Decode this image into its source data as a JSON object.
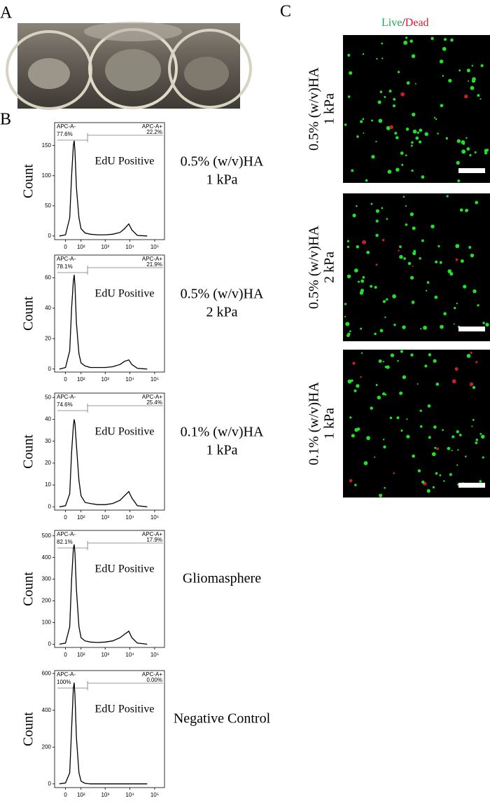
{
  "panels": {
    "a": "A",
    "b": "B",
    "c": "C"
  },
  "live_dead": {
    "live": "Live",
    "sep": "/",
    "dead": "Dead"
  },
  "images": [
    {
      "lines": [
        "0.5% (w/v)HA",
        "1 kPa"
      ]
    },
    {
      "lines": [
        "0.5% (w/v)HA",
        "2 kPa"
      ]
    },
    {
      "lines": [
        "0.1% (w/v)HA",
        "1 kPa"
      ]
    }
  ],
  "chart_data": [
    {
      "type": "line",
      "xscale": "biexponential",
      "ylabel": "Count",
      "annotation": "EdU Positive",
      "condition": [
        "0.5% (w/v)HA",
        "1 kPa"
      ],
      "gate": {
        "neg_label": "APC-A-",
        "neg_pct": "77.6%",
        "pos_label": "APC-A+",
        "pos_pct": "22.2%"
      },
      "x": [
        -30,
        0,
        20,
        30,
        40,
        45,
        50,
        60,
        80,
        100,
        150,
        250,
        500,
        1000,
        2000,
        4000,
        6000,
        9000,
        12000,
        20000,
        50000
      ],
      "values": [
        0,
        2,
        30,
        100,
        150,
        158,
        140,
        80,
        30,
        12,
        5,
        3,
        2,
        2,
        3,
        6,
        12,
        20,
        10,
        1,
        0
      ],
      "color": "#000000",
      "xlim": [
        -60,
        250000
      ],
      "ylim": [
        -6,
        188
      ],
      "yticks": [
        0,
        50,
        100,
        150
      ],
      "xticks": [
        0,
        {
          "value": 100,
          "label": "10²"
        },
        {
          "value": 1000,
          "label": "10³"
        },
        {
          "value": 10000,
          "label": "10⁴"
        },
        {
          "value": 100000,
          "label": "10⁵"
        }
      ]
    },
    {
      "type": "line",
      "xscale": "biexponential",
      "ylabel": "Count",
      "annotation": "EdU Positive",
      "condition": [
        "0.5% (w/v)HA",
        "2 kPa"
      ],
      "gate": {
        "neg_label": "APC-A-",
        "neg_pct": "78.1%",
        "pos_label": "APC-A+",
        "pos_pct": "21.9%"
      },
      "x": [
        -30,
        0,
        20,
        30,
        40,
        45,
        50,
        60,
        80,
        100,
        150,
        250,
        500,
        1000,
        2000,
        4000,
        6000,
        9000,
        12000,
        20000,
        50000
      ],
      "values": [
        0,
        1,
        12,
        40,
        58,
        62,
        55,
        30,
        10,
        4,
        2,
        1,
        1,
        1,
        1.5,
        3,
        5,
        6,
        3,
        0.5,
        0
      ],
      "color": "#000000",
      "xlim": [
        -60,
        250000
      ],
      "ylim": [
        -2,
        75
      ],
      "yticks": [
        0,
        20,
        40,
        60
      ],
      "xticks": [
        0,
        {
          "value": 100,
          "label": "10²"
        },
        {
          "value": 1000,
          "label": "10³"
        },
        {
          "value": 10000,
          "label": "10⁴"
        },
        {
          "value": 100000,
          "label": "10⁵"
        }
      ]
    },
    {
      "type": "line",
      "xscale": "biexponential",
      "ylabel": "Count",
      "annotation": "EdU Positive",
      "condition": [
        "0.1% (w/v)HA",
        "1 kPa"
      ],
      "gate": {
        "neg_label": "APC-A-",
        "neg_pct": "74.6%",
        "pos_label": "APC-A+",
        "pos_pct": "25.4%"
      },
      "x": [
        -30,
        0,
        20,
        30,
        40,
        45,
        50,
        60,
        80,
        100,
        150,
        250,
        500,
        1000,
        2000,
        4000,
        6000,
        9000,
        12000,
        20000,
        50000
      ],
      "values": [
        0,
        0.5,
        6,
        25,
        37,
        40,
        38,
        28,
        12,
        5,
        2,
        1.5,
        1,
        1,
        1.5,
        3,
        5,
        7,
        4,
        0.5,
        0
      ],
      "color": "#000000",
      "xlim": [
        -60,
        250000
      ],
      "ylim": [
        -1.5,
        52
      ],
      "yticks": [
        0,
        10,
        20,
        30,
        40,
        50
      ],
      "xticks": [
        0,
        {
          "value": 100,
          "label": "10²"
        },
        {
          "value": 1000,
          "label": "10³"
        },
        {
          "value": 10000,
          "label": "10⁴"
        },
        {
          "value": 100000,
          "label": "10⁵"
        }
      ]
    },
    {
      "type": "line",
      "xscale": "biexponential",
      "ylabel": "Count",
      "annotation": "EdU Positive",
      "condition": [
        "Gliomasphere"
      ],
      "gate": {
        "neg_label": "APC-A-",
        "neg_pct": "82.1%",
        "pos_label": "APC-A+",
        "pos_pct": "17.9%"
      },
      "x": [
        -30,
        0,
        20,
        30,
        40,
        45,
        50,
        60,
        80,
        100,
        150,
        250,
        500,
        1000,
        2000,
        4000,
        6000,
        9000,
        12000,
        20000,
        50000
      ],
      "values": [
        0,
        5,
        80,
        300,
        440,
        460,
        420,
        250,
        80,
        30,
        15,
        10,
        8,
        10,
        15,
        30,
        45,
        60,
        30,
        5,
        0
      ],
      "color": "#000000",
      "xlim": [
        -60,
        250000
      ],
      "ylim": [
        -15,
        525
      ],
      "yticks": [
        0,
        100,
        200,
        300,
        400,
        500
      ],
      "xticks": [
        0,
        {
          "value": 100,
          "label": "10²"
        },
        {
          "value": 1000,
          "label": "10³"
        },
        {
          "value": 10000,
          "label": "10⁴"
        },
        {
          "value": 100000,
          "label": "10⁵"
        }
      ]
    },
    {
      "type": "line",
      "xscale": "biexponential",
      "ylabel": "Count",
      "annotation": "EdU Positive",
      "condition": [
        "Negative Control"
      ],
      "gate": {
        "neg_label": "APC-A-",
        "neg_pct": "100%",
        "pos_label": "APC-A+",
        "pos_pct": "0.00%"
      },
      "x": [
        -30,
        0,
        20,
        30,
        40,
        45,
        50,
        60,
        80,
        100,
        150,
        250,
        500,
        1000,
        2000,
        4000,
        6000,
        9000,
        12000,
        20000,
        50000
      ],
      "values": [
        0,
        5,
        60,
        300,
        520,
        550,
        480,
        250,
        60,
        15,
        3,
        0,
        0,
        0,
        0,
        0,
        0,
        0,
        0,
        0,
        0
      ],
      "color": "#000000",
      "xlim": [
        -60,
        250000
      ],
      "ylim": [
        -20,
        616
      ],
      "yticks": [
        0,
        200,
        400,
        600
      ],
      "xticks": [
        0,
        {
          "value": 100,
          "label": "10²"
        },
        {
          "value": 1000,
          "label": "10³"
        },
        {
          "value": 10000,
          "label": "10⁴"
        },
        {
          "value": 100000,
          "label": "10⁵"
        }
      ]
    }
  ]
}
